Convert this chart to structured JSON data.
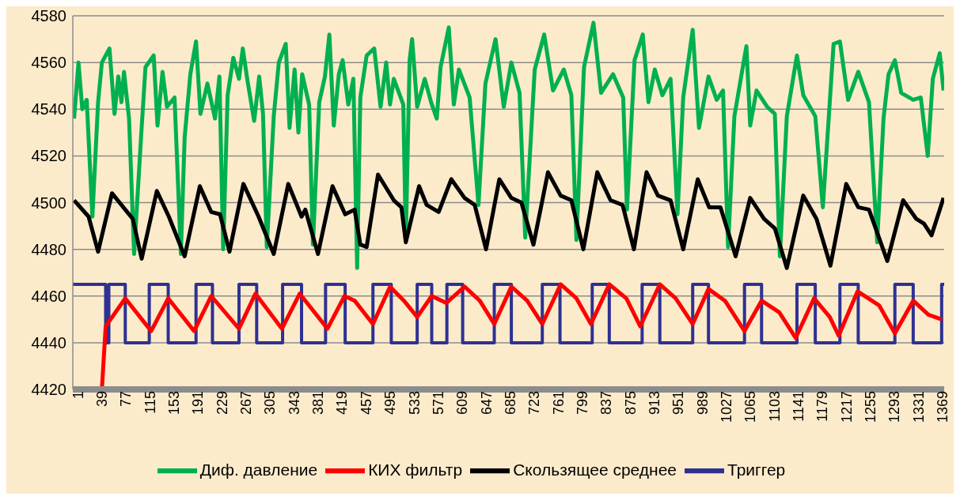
{
  "chart_data": {
    "type": "line",
    "xlim": [
      1,
      1380
    ],
    "xticks": [
      1,
      39,
      77,
      115,
      153,
      191,
      229,
      267,
      305,
      343,
      381,
      419,
      457,
      495,
      533,
      571,
      609,
      647,
      685,
      723,
      761,
      799,
      837,
      875,
      913,
      951,
      989,
      1027,
      1065,
      1103,
      1141,
      1179,
      1217,
      1255,
      1293,
      1331,
      1369
    ],
    "ylim": [
      4420,
      4580
    ],
    "yticks": [
      4420,
      4440,
      4460,
      4480,
      4500,
      4520,
      4540,
      4560,
      4580
    ],
    "grid": "y",
    "legend": "bottom",
    "marker": "none",
    "line_style": "solid",
    "series": [
      {
        "name": "Диф. давление",
        "color": "#00b050",
        "x": [
          3,
          10,
          16,
          23,
          32,
          41,
          47,
          59,
          67,
          73,
          78,
          82,
          90,
          98,
          109,
          116,
          129,
          135,
          143,
          150,
          162,
          172,
          178,
          187,
          196,
          203,
          214,
          226,
          233,
          239,
          246,
          255,
          264,
          270,
          277,
          288,
          296,
          302,
          308,
          319,
          327,
          338,
          344,
          352,
          358,
          364,
          375,
          381,
          391,
          400,
          407,
          414,
          422,
          428,
          437,
          445,
          451,
          456,
          466,
          478,
          488,
          497,
          503,
          509,
          524,
          528,
          534,
          538,
          546,
          558,
          568,
          577,
          583,
          596,
          604,
          612,
          629,
          643,
          654,
          670,
          683,
          695,
          708,
          717,
          732,
          747,
          761,
          778,
          790,
          798,
          810,
          825,
          837,
          856,
          872,
          878,
          890,
          903,
          912,
          922,
          934,
          947,
          958,
          967,
          982,
          992,
          1007,
          1020,
          1030,
          1038,
          1048,
          1067,
          1073,
          1083,
          1100,
          1112,
          1120,
          1131,
          1147,
          1157,
          1176,
          1188,
          1205,
          1215,
          1228,
          1244,
          1261,
          1274,
          1284,
          1292,
          1302,
          1312,
          1331,
          1343,
          1354,
          1362,
          1373,
          1379
        ],
        "values": [
          4536,
          4560,
          4540,
          4544,
          4494,
          4543,
          4560,
          4566,
          4538,
          4554,
          4543,
          4556,
          4536,
          4478,
          4528,
          4558,
          4563,
          4533,
          4556,
          4541,
          4545,
          4478,
          4528,
          4555,
          4569,
          4538,
          4551,
          4536,
          4554,
          4480,
          4546,
          4562,
          4553,
          4566,
          4553,
          4535,
          4554,
          4538,
          4481,
          4537,
          4560,
          4568,
          4532,
          4557,
          4530,
          4555,
          4542,
          4482,
          4543,
          4554,
          4572,
          4533,
          4555,
          4561,
          4542,
          4553,
          4472,
          4545,
          4563,
          4566,
          4541,
          4560,
          4542,
          4553,
          4542,
          4484,
          4561,
          4570,
          4541,
          4553,
          4543,
          4536,
          4558,
          4575,
          4542,
          4557,
          4545,
          4499,
          4551,
          4570,
          4541,
          4560,
          4547,
          4485,
          4557,
          4572,
          4548,
          4557,
          4546,
          4484,
          4558,
          4577,
          4547,
          4555,
          4545,
          4497,
          4561,
          4572,
          4543,
          4557,
          4546,
          4553,
          4495,
          4545,
          4574,
          4532,
          4554,
          4544,
          4548,
          4481,
          4537,
          4567,
          4533,
          4548,
          4541,
          4538,
          4477,
          4537,
          4563,
          4546,
          4537,
          4498,
          4568,
          4569,
          4544,
          4556,
          4543,
          4483,
          4536,
          4555,
          4561,
          4547,
          4544,
          4545,
          4520,
          4553,
          4564,
          4548
        ]
      },
      {
        "name": "Триггер",
        "type": "step",
        "color": "#2e3192",
        "x": [
          1,
          53,
          58,
          84,
          122,
          152,
          196,
          222,
          264,
          292,
          333,
          363,
          401,
          432,
          476,
          505,
          546,
          569,
          593,
          618,
          668,
          695,
          744,
          772,
          823,
          850,
          902,
          930,
          982,
          1007,
          1064,
          1091,
          1147,
          1176,
          1215,
          1244,
          1302,
          1331,
          1376,
          1380
        ],
        "values": [
          4465,
          4440,
          4465,
          4440,
          4465,
          4440,
          4465,
          4440,
          4465,
          4440,
          4465,
          4440,
          4465,
          4440,
          4465,
          4440,
          4465,
          4440,
          4465,
          4440,
          4465,
          4440,
          4465,
          4440,
          4465,
          4440,
          4465,
          4440,
          4465,
          4440,
          4465,
          4440,
          4465,
          4440,
          4465,
          4440,
          4465,
          4440,
          4465,
          4465
        ]
      },
      {
        "name": "КИХ фильтр",
        "color": "#ff0000",
        "x": [
          47,
          53,
          84,
          125,
          152,
          193,
          220,
          264,
          290,
          332,
          360,
          404,
          431,
          447,
          476,
          503,
          525,
          546,
          569,
          592,
          621,
          645,
          668,
          695,
          720,
          744,
          773,
          798,
          821,
          850,
          877,
          899,
          930,
          955,
          982,
          1007,
          1033,
          1064,
          1091,
          1119,
          1145,
          1174,
          1199,
          1213,
          1243,
          1277,
          1302,
          1331,
          1355,
          1376
        ],
        "values": [
          4420,
          4447,
          4459,
          4445,
          4459,
          4445,
          4460,
          4446,
          4461,
          4446,
          4461,
          4446,
          4460,
          4458,
          4448,
          4464,
          4458,
          4451,
          4460,
          4457,
          4464,
          4458,
          4448,
          4464,
          4458,
          4448,
          4465,
          4459,
          4448,
          4465,
          4459,
          4447,
          4465,
          4459,
          4448,
          4463,
          4458,
          4445,
          4458,
          4453,
          4442,
          4459,
          4451,
          4443,
          4462,
          4456,
          4444,
          4458,
          4452,
          4450
        ]
      },
      {
        "name": "Скользящее среднее",
        "color": "#000000",
        "x": [
          3,
          26,
          41,
          63,
          84,
          96,
          110,
          134,
          153,
          178,
          202,
          220,
          234,
          249,
          271,
          295,
          319,
          342,
          363,
          369,
          389,
          412,
          432,
          447,
          456,
          466,
          484,
          509,
          521,
          528,
          549,
          561,
          580,
          600,
          621,
          637,
          655,
          676,
          695,
          711,
          730,
          753,
          773,
          790,
          809,
          831,
          852,
          871,
          889,
          909,
          927,
          947,
          967,
          990,
          1008,
          1026,
          1050,
          1073,
          1095,
          1112,
          1131,
          1157,
          1178,
          1200,
          1225,
          1244,
          1261,
          1290,
          1315,
          1336,
          1348,
          1360,
          1379
        ],
        "values": [
          4501,
          4494,
          4479,
          4504,
          4497,
          4493,
          4476,
          4505,
          4494,
          4477,
          4507,
          4496,
          4495,
          4479,
          4508,
          4494,
          4478,
          4508,
          4494,
          4497,
          4478,
          4507,
          4495,
          4497,
          4482,
          4481,
          4512,
          4501,
          4498,
          4483,
          4507,
          4499,
          4496,
          4510,
          4502,
          4499,
          4480,
          4510,
          4502,
          4500,
          4482,
          4513,
          4503,
          4501,
          4480,
          4513,
          4501,
          4499,
          4480,
          4513,
          4503,
          4501,
          4480,
          4510,
          4498,
          4498,
          4477,
          4502,
          4493,
          4489,
          4472,
          4503,
          4493,
          4473,
          4508,
          4498,
          4497,
          4475,
          4501,
          4493,
          4491,
          4486,
          4502
        ]
      }
    ]
  }
}
